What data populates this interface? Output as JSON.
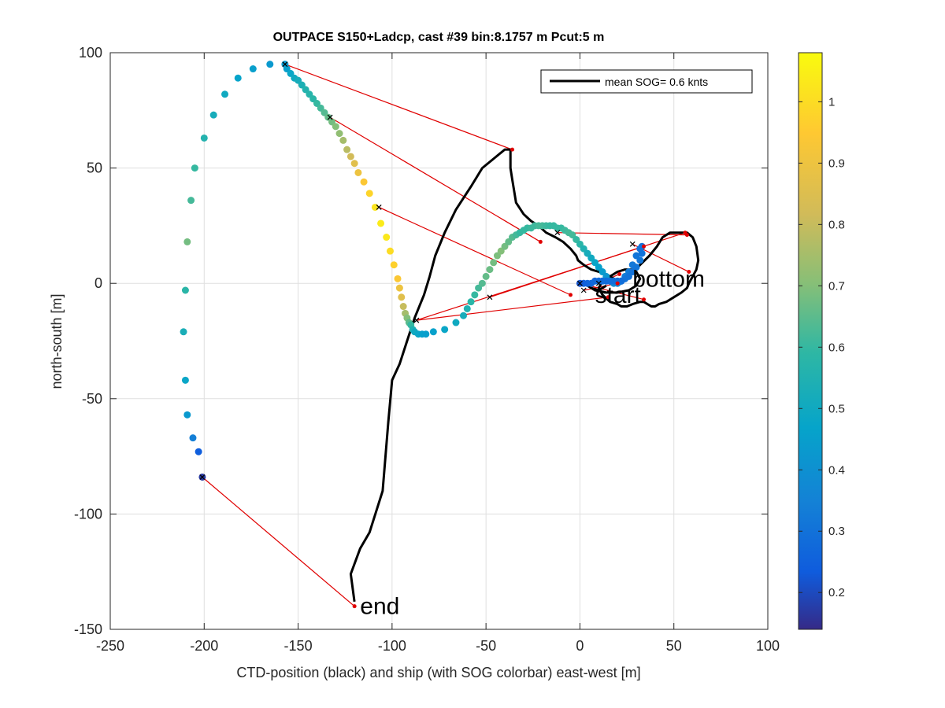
{
  "chart_data": {
    "type": "scatter",
    "title": "OUTPACE S150+Ladcp, cast #39 bin:8.1757 m  Pcut:5 m",
    "xlabel": "CTD-position (black) and ship (with SOG colorbar) east-west [m]",
    "ylabel": "north-south [m]",
    "xlim": [
      -250,
      100
    ],
    "ylim": [
      -150,
      100
    ],
    "xticks": [
      -250,
      -200,
      -150,
      -100,
      -50,
      0,
      50,
      100
    ],
    "yticks": [
      -150,
      -100,
      -50,
      0,
      50,
      100
    ],
    "grid": true,
    "legend": {
      "label": "mean SOG=  0.6 knts",
      "placement": "top-right"
    },
    "colorbar": {
      "min": 0.14,
      "max": 1.08,
      "ticks": [
        0.2,
        0.3,
        0.4,
        0.5,
        0.6,
        0.7,
        0.8,
        0.9,
        1
      ],
      "tick_labels": [
        "0.2",
        "0.3",
        "0.4",
        "0.5",
        "0.6",
        "0.7",
        "0.8",
        "0.9",
        "1"
      ],
      "colormap": "parula"
    },
    "annotations": [
      {
        "text": "start",
        "x": 8,
        "y": -5
      },
      {
        "text": "bottom",
        "x": 28,
        "y": 2
      },
      {
        "text": "end",
        "x": -117,
        "y": -140
      }
    ],
    "ctd_track": {
      "name": "CTD-position",
      "color": "#000000",
      "x": [
        -120,
        -122,
        -117,
        -112,
        -105,
        -102,
        -100,
        -96,
        -92,
        -88,
        -83,
        -80,
        -77,
        -72,
        -66,
        -58,
        -52,
        -46,
        -40,
        -37,
        -37,
        -36,
        -35,
        -34,
        -30,
        -26,
        -22,
        -18,
        -13,
        -9,
        -5,
        -2,
        -1,
        2,
        6,
        10,
        14,
        18,
        22,
        26,
        32,
        37,
        41,
        44,
        48,
        53,
        57,
        60,
        62,
        63,
        62,
        60,
        58,
        57,
        54,
        50,
        46,
        42,
        40,
        38,
        36,
        34,
        32,
        28,
        25,
        22,
        20,
        16,
        12,
        10,
        12,
        16,
        20,
        24,
        28,
        30,
        32,
        30,
        26,
        20,
        14,
        8,
        4,
        2,
        2,
        6,
        10,
        14
      ],
      "y": [
        -138,
        -126,
        -115,
        -108,
        -90,
        -60,
        -42,
        -35,
        -25,
        -15,
        -5,
        3,
        12,
        22,
        32,
        42,
        50,
        54,
        58,
        58,
        50,
        45,
        40,
        35,
        30,
        27,
        25,
        22,
        20,
        18,
        15,
        12,
        10,
        8,
        6,
        5,
        4,
        2,
        0,
        3,
        8,
        12,
        16,
        20,
        22,
        22,
        22,
        20,
        16,
        10,
        6,
        3,
        0,
        -2,
        -4,
        -6,
        -8,
        -9,
        -10,
        -10,
        -9,
        -8,
        -8,
        -9,
        -10,
        -10,
        -9,
        -8,
        -5,
        -2,
        1,
        3,
        5,
        6,
        6,
        5,
        2,
        -1,
        -3,
        -4,
        -4,
        -3,
        -1,
        1,
        0,
        -2,
        -3,
        -1
      ]
    },
    "ship_track": {
      "name": "ship",
      "x": [
        -201,
        -203,
        -206,
        -209,
        -210,
        -211,
        -210,
        -209,
        -207,
        -205,
        -200,
        -195,
        -189,
        -182,
        -174,
        -165,
        -157,
        -156,
        -154,
        -152,
        -150,
        -148,
        -146,
        -144,
        -142,
        -140,
        -138,
        -136,
        -134,
        -132,
        -130,
        -128,
        -126,
        -124,
        -122,
        -120,
        -118,
        -115,
        -112,
        -109,
        -106,
        -103,
        -101,
        -99,
        -97,
        -96,
        -95,
        -94,
        -93,
        -92,
        -91,
        -90,
        -89,
        -88,
        -86,
        -84,
        -82,
        -78,
        -72,
        -66,
        -62,
        -60,
        -58,
        -56,
        -54,
        -52,
        -50,
        -48,
        -46,
        -44,
        -42,
        -40,
        -38,
        -36,
        -34,
        -32,
        -30,
        -28,
        -26,
        -24,
        -22,
        -20,
        -18,
        -16,
        -14,
        -12,
        -10,
        -8,
        -6,
        -4,
        -2,
        0,
        2,
        4,
        6,
        8,
        10,
        12,
        14,
        16,
        18,
        20,
        22,
        24,
        26,
        28,
        30,
        32,
        33,
        33,
        32,
        30,
        28,
        26,
        24,
        22,
        20,
        18,
        16,
        14,
        12,
        10,
        8,
        6,
        4,
        2,
        0
      ],
      "y": [
        -84,
        -73,
        -67,
        -57,
        -42,
        -21,
        -3,
        18,
        36,
        50,
        63,
        73,
        82,
        89,
        93,
        95,
        95,
        93,
        91,
        89,
        88,
        86,
        84,
        82,
        80,
        78,
        76,
        74,
        72,
        70,
        68,
        65,
        62,
        58,
        55,
        52,
        48,
        44,
        39,
        33,
        26,
        20,
        14,
        8,
        2,
        -2,
        -6,
        -10,
        -13,
        -15,
        -17,
        -18,
        -20,
        -21,
        -22,
        -22,
        -22,
        -21,
        -20,
        -17,
        -14,
        -11,
        -8,
        -5,
        -2,
        0,
        3,
        6,
        9,
        12,
        14,
        16,
        18,
        20,
        21,
        22,
        23,
        24,
        24,
        25,
        25,
        25,
        25,
        25,
        25,
        24,
        24,
        23,
        22,
        21,
        19,
        17,
        15,
        13,
        11,
        9,
        7,
        5,
        3,
        1,
        0,
        0,
        1,
        3,
        5,
        8,
        12,
        15,
        16,
        13,
        10,
        7,
        5,
        3,
        2,
        1,
        1,
        1,
        1,
        1,
        1,
        1,
        1,
        0,
        0,
        0,
        0
      ],
      "sog": [
        0.17,
        0.24,
        0.34,
        0.43,
        0.48,
        0.53,
        0.58,
        0.68,
        0.62,
        0.6,
        0.56,
        0.52,
        0.5,
        0.47,
        0.45,
        0.43,
        0.43,
        0.45,
        0.48,
        0.5,
        0.52,
        0.54,
        0.56,
        0.57,
        0.58,
        0.6,
        0.62,
        0.64,
        0.66,
        0.68,
        0.7,
        0.72,
        0.75,
        0.78,
        0.82,
        0.86,
        0.9,
        0.94,
        0.98,
        1.02,
        1.04,
        1.03,
        1.0,
        0.97,
        0.94,
        0.9,
        0.86,
        0.8,
        0.75,
        0.7,
        0.65,
        0.6,
        0.55,
        0.5,
        0.48,
        0.46,
        0.45,
        0.46,
        0.48,
        0.5,
        0.52,
        0.55,
        0.58,
        0.6,
        0.62,
        0.64,
        0.66,
        0.67,
        0.68,
        0.69,
        0.7,
        0.68,
        0.66,
        0.64,
        0.62,
        0.6,
        0.6,
        0.6,
        0.61,
        0.61,
        0.62,
        0.62,
        0.61,
        0.6,
        0.6,
        0.6,
        0.6,
        0.61,
        0.62,
        0.62,
        0.6,
        0.58,
        0.55,
        0.52,
        0.5,
        0.48,
        0.46,
        0.44,
        0.42,
        0.4,
        0.38,
        0.36,
        0.35,
        0.34,
        0.33,
        0.32,
        0.31,
        0.3,
        0.3,
        0.3,
        0.31,
        0.31,
        0.3,
        0.3,
        0.3,
        0.29,
        0.29,
        0.29,
        0.29,
        0.28,
        0.28,
        0.28,
        0.27,
        0.27,
        0.26,
        0.25,
        0.22
      ]
    },
    "connections": [
      {
        "ship": [
          -201,
          -84
        ],
        "ctd": [
          -120,
          -140
        ]
      },
      {
        "ship": [
          -157,
          95
        ],
        "ctd": [
          -36,
          58
        ]
      },
      {
        "ship": [
          -133,
          72
        ],
        "ctd": [
          -21,
          18
        ]
      },
      {
        "ship": [
          -107,
          33
        ],
        "ctd": [
          -5,
          -5
        ]
      },
      {
        "ship": [
          -87,
          -16
        ],
        "ctd": [
          34,
          16
        ]
      },
      {
        "ship": [
          -48,
          -6
        ],
        "ctd": [
          56,
          22
        ]
      },
      {
        "ship": [
          -12,
          22
        ],
        "ctd": [
          57,
          21
        ]
      },
      {
        "ship": [
          28,
          17
        ],
        "ctd": [
          58,
          5
        ]
      },
      {
        "ship": [
          0,
          0
        ],
        "ctd": [
          34,
          -7
        ]
      },
      {
        "ship": [
          -87,
          -16
        ],
        "ctd": [
          15,
          -6
        ]
      },
      {
        "ship": [
          2,
          -3
        ],
        "ctd": [
          20,
          0
        ]
      },
      {
        "ship": [
          10,
          0
        ],
        "ctd": [
          21,
          4
        ]
      }
    ]
  }
}
